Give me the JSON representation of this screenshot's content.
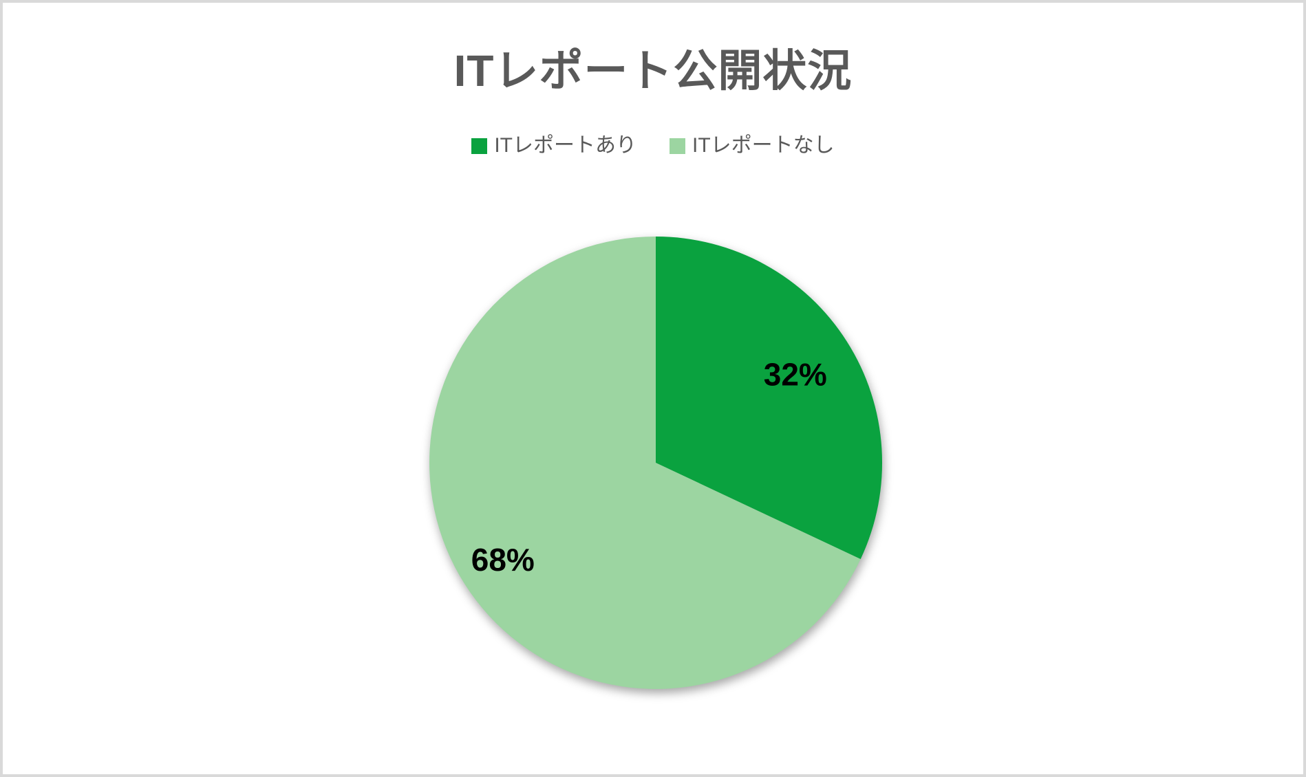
{
  "chart_data": {
    "type": "pie",
    "title": "ITレポート公開状況",
    "legend_position": "top",
    "data_labels": "percent",
    "start_angle_deg": 0,
    "direction": "clockwise",
    "slices": [
      {
        "label": "ITレポートあり",
        "value": 32,
        "data_label": "32%",
        "color": "#0aa23f"
      },
      {
        "label": "ITレポートなし",
        "value": 68,
        "data_label": "68%",
        "color": "#9cd5a1"
      }
    ]
  },
  "colors": {
    "title_text": "#595959",
    "legend_text": "#595959",
    "data_label_text": "#000000",
    "frame_border": "#d9d9d9",
    "background": "#ffffff"
  }
}
